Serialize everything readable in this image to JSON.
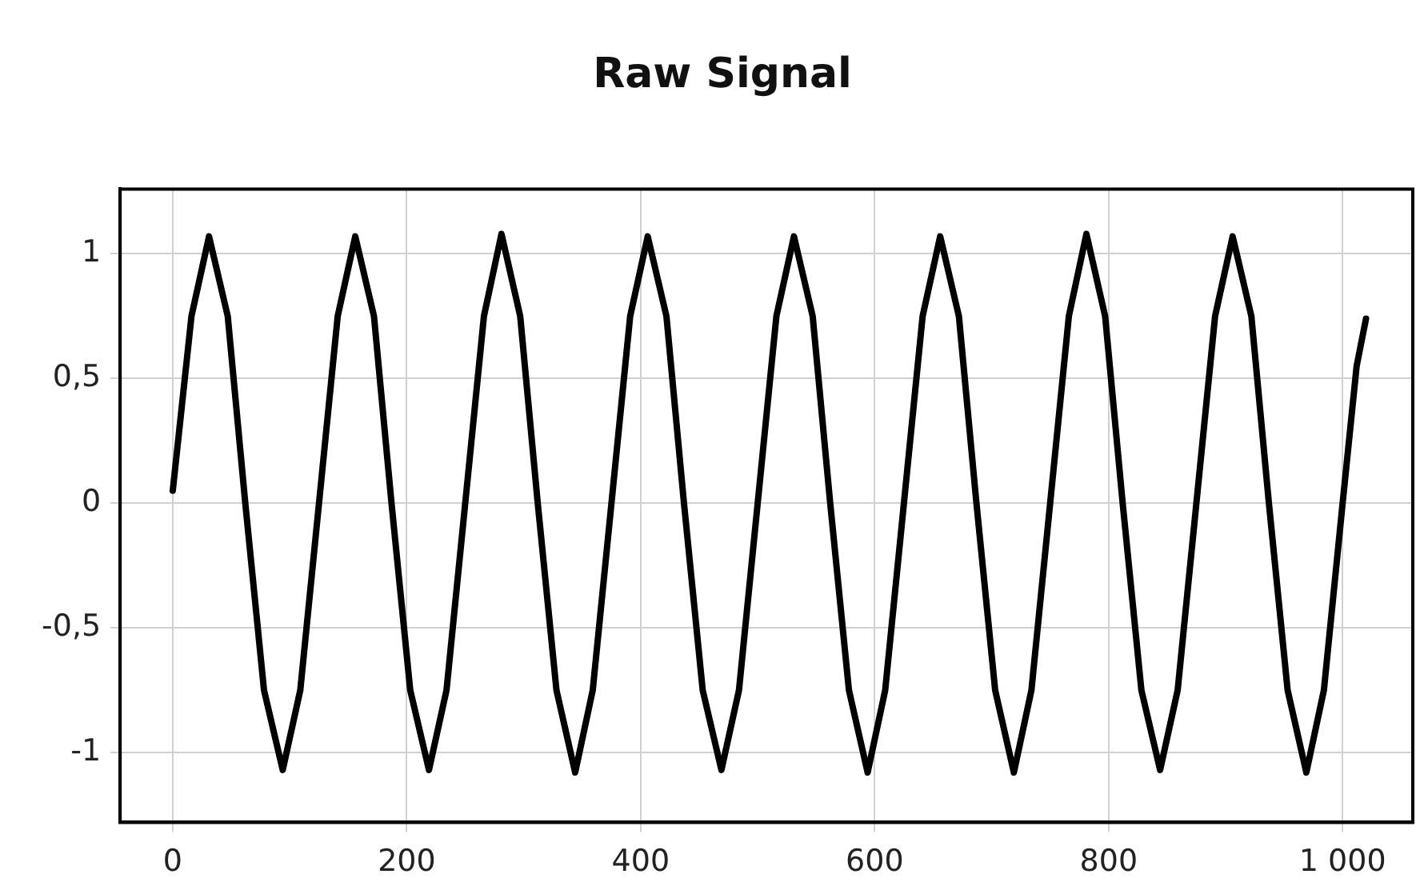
{
  "chart_data": {
    "type": "line",
    "title": "Raw Signal",
    "x": [
      0,
      16,
      31,
      47,
      62,
      78,
      94,
      109,
      125,
      141,
      156,
      172,
      187,
      203,
      219,
      234,
      250,
      266,
      281,
      297,
      312,
      328,
      344,
      359,
      375,
      391,
      406,
      422,
      437,
      453,
      469,
      484,
      500,
      516,
      531,
      547,
      562,
      578,
      594,
      609,
      625,
      641,
      656,
      672,
      687,
      703,
      719,
      734,
      750,
      766,
      781,
      797,
      812,
      828,
      844,
      859,
      875,
      891,
      906,
      922,
      937,
      953,
      969,
      984,
      1000,
      1012,
      1020
    ],
    "series": [
      {
        "color": "#000000",
        "values": [
          0.05,
          0.75,
          1.07,
          0.75,
          0,
          -0.75,
          -1.07,
          -0.75,
          0,
          0.75,
          1.07,
          0.75,
          0,
          -0.75,
          -1.07,
          -0.75,
          0,
          0.75,
          1.08,
          0.75,
          0,
          -0.75,
          -1.08,
          -0.75,
          0,
          0.75,
          1.07,
          0.75,
          0,
          -0.75,
          -1.07,
          -0.75,
          0,
          0.75,
          1.07,
          0.75,
          0,
          -0.75,
          -1.08,
          -0.75,
          0,
          0.75,
          1.07,
          0.75,
          0,
          -0.75,
          -1.08,
          -0.75,
          0,
          0.75,
          1.08,
          0.75,
          0,
          -0.75,
          -1.07,
          -0.75,
          0,
          0.75,
          1.07,
          0.75,
          0,
          -0.75,
          -1.08,
          -0.75,
          0,
          0.55,
          0.74
        ]
      }
    ],
    "xlim": [
      -45,
      1060
    ],
    "ylim": [
      -1.28,
      1.26
    ],
    "xticks": [
      0,
      200,
      400,
      600,
      800,
      {
        "value": 1000,
        "label": "1 000"
      }
    ],
    "yticks": [
      {
        "value": -1,
        "label": "-1"
      },
      {
        "value": -0.5,
        "label": "-0,5"
      },
      0,
      {
        "value": 0.5,
        "label": "0,5"
      },
      1
    ],
    "grid": true,
    "legend": false,
    "marker": "none",
    "line_style": "solid"
  }
}
